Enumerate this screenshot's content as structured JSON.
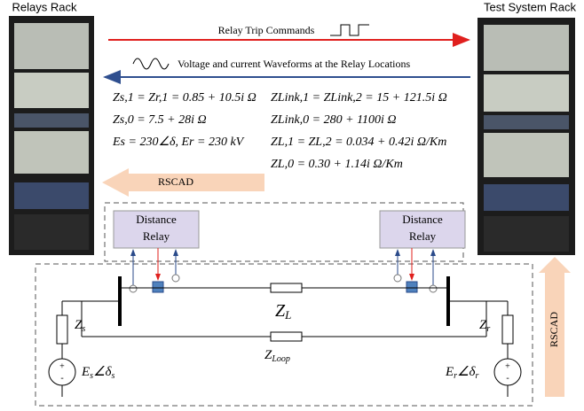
{
  "racks": {
    "left": "Relays Rack",
    "right": "Test System Rack"
  },
  "arrows": {
    "trip": "Relay Trip Commands",
    "waveforms": "Voltage and current Waveforms at the Relay Locations"
  },
  "equations": {
    "left": [
      "Zs,1 = Zr,1 = 0.85 + 10.5i Ω",
      "Zs,0 = 7.5 + 28i Ω",
      "Es = 230∠δ, Er = 230 kV"
    ],
    "right": [
      "ZLink,1 = ZLink,2 = 15 + 121.5i Ω",
      "ZLink,0 = 280 + 1100i Ω",
      "ZL,1 = ZL,2 = 0.034 + 0.42i Ω/Km",
      "ZL,0 = 0.30 + 1.14i Ω/Km"
    ]
  },
  "rscad": {
    "left": "RSCAD",
    "right": "RSCAD"
  },
  "relays": [
    {
      "lines": [
        "Distance",
        "Relay"
      ]
    },
    {
      "lines": [
        "Distance",
        "Relay"
      ]
    }
  ],
  "circuit": {
    "line_impedance": {
      "main": "Z",
      "sub": "L"
    },
    "loop_impedance": {
      "main": "Z",
      "sub": "Loop"
    },
    "source_impedance_left": {
      "main": "Z",
      "sub": "s"
    },
    "source_impedance_right": {
      "main": "Z",
      "sub": "r"
    },
    "source_left": {
      "main": "E",
      "sub1": "s",
      "angle": "∠δ",
      "sub2": "s"
    },
    "source_right": {
      "main": "E",
      "sub1": "r",
      "angle": "∠δ",
      "sub2": "r"
    },
    "plus": "+",
    "minus": "-"
  }
}
